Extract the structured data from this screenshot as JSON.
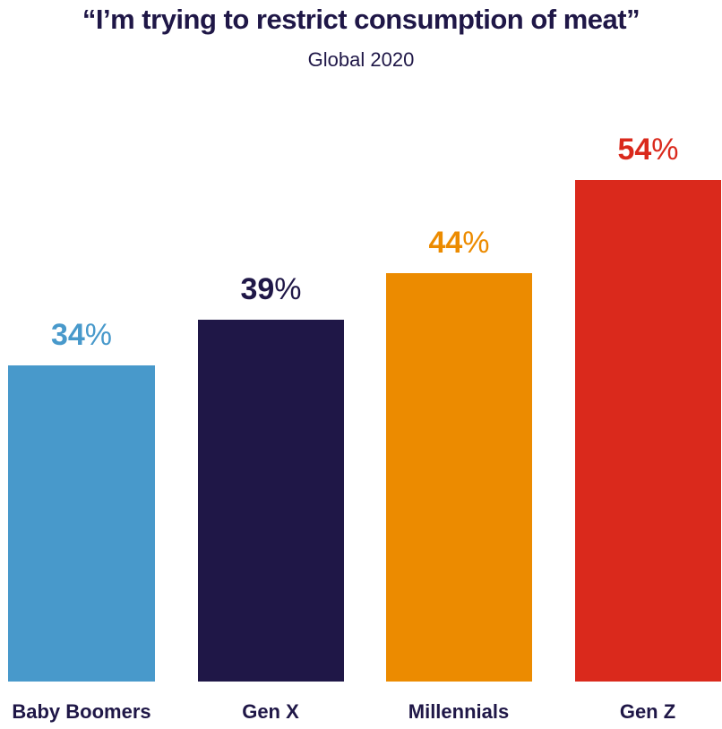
{
  "header": {
    "title": "“I’m trying to restrict consumption of meat”",
    "subtitle": "Global 2020"
  },
  "bars": [
    {
      "label": "Baby Boomers",
      "value": 34,
      "num": "34",
      "pct": "%",
      "color": "#4899cb"
    },
    {
      "label": "Gen X",
      "value": 39,
      "num": "39",
      "pct": "%",
      "color": "#1f1747"
    },
    {
      "label": "Millennials",
      "value": 44,
      "num": "44",
      "pct": "%",
      "color": "#ec8b00"
    },
    {
      "label": "Gen Z",
      "value": 54,
      "num": "54",
      "pct": "%",
      "color": "#da291c"
    }
  ],
  "chart_data": {
    "type": "bar",
    "title": "“I’m trying to restrict consumption of meat”",
    "subtitle": "Global 2020",
    "categories": [
      "Baby Boomers",
      "Gen X",
      "Millennials",
      "Gen Z"
    ],
    "values": [
      34,
      39,
      44,
      54
    ],
    "unit": "%",
    "colors": [
      "#4899cb",
      "#1f1747",
      "#ec8b00",
      "#da291c"
    ],
    "xlabel": "",
    "ylabel": "",
    "grid": false,
    "legend": null,
    "data_labels": true
  }
}
